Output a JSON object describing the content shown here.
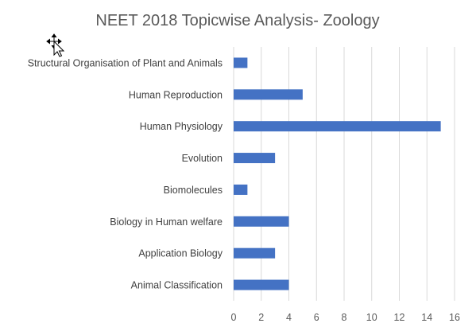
{
  "chart_data": {
    "type": "bar",
    "orientation": "horizontal",
    "title": "NEET 2018 Topicwise Analysis- Zoology",
    "categories": [
      "Structural Organisation of Plant and Animals",
      "Human Reproduction",
      "Human Physiology",
      "Evolution",
      "Biomolecules",
      "Biology in Human welfare",
      "Application Biology",
      "Animal Classification"
    ],
    "values": [
      1,
      5,
      15,
      3,
      1,
      4,
      3,
      4
    ],
    "xlim": [
      0,
      16
    ],
    "xticks": [
      0,
      2,
      4,
      6,
      8,
      10,
      12,
      14,
      16
    ],
    "grid": true,
    "legend": "none",
    "bar_color": "#4472c4",
    "grid_color": "#d9d9d9"
  },
  "icons": {
    "cursor": "move-cursor-icon"
  }
}
